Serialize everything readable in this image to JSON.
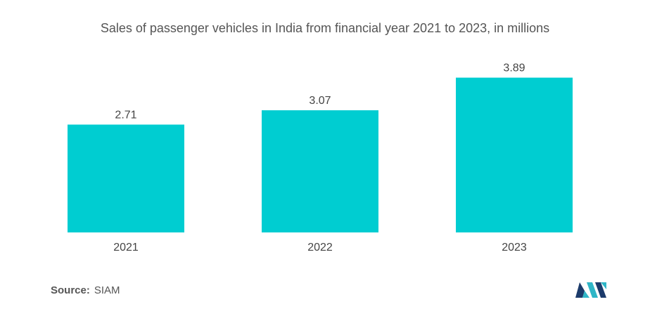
{
  "chart_data": {
    "type": "bar",
    "title": "Sales of passenger vehicles in India from financial year 2021 to 2023, in millions",
    "categories": [
      "2021",
      "2022",
      "2023"
    ],
    "values": [
      2.71,
      3.07,
      3.89
    ],
    "value_labels": [
      "2.71",
      "3.07",
      "3.89"
    ],
    "bar_color": "#00CDD1",
    "ylim": [
      0,
      4.5
    ],
    "grid": false,
    "legend": "none"
  },
  "footer": {
    "source_label": "Source:",
    "source_value": "SIAM"
  },
  "logo": {
    "icon": "mn-logo-icon",
    "colors": [
      "#1C3B6B",
      "#2FB6C7"
    ]
  }
}
